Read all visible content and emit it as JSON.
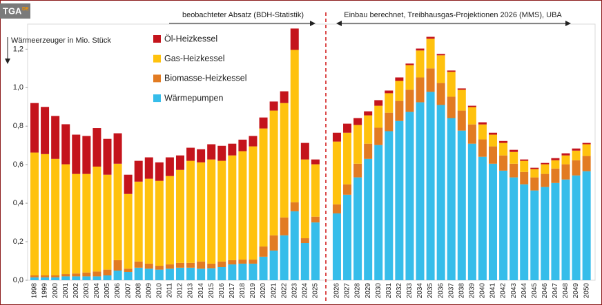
{
  "chart_data": {
    "type": "stacked-bar",
    "logo": {
      "text": "TGA",
      "suffix": "DE"
    },
    "y_label": "Wärmeerzeuger  in Mio. Stück",
    "annotations": [
      "beobachteter  Absatz (BDH-Statistik)",
      "Einbau berechnet, Treibhausgas-Projektionen 2026 (MMS), UBA"
    ],
    "categories": [
      "1998",
      "1999",
      "2000",
      "2001",
      "2002",
      "2003",
      "2004",
      "2005",
      "2006",
      "2007",
      "2008",
      "2009",
      "2010",
      "2011",
      "2012",
      "2013",
      "2014",
      "2015",
      "2016",
      "2017",
      "2018",
      "2019",
      "2020",
      "2021",
      "2022",
      "2023",
      "2024",
      "2025",
      "2026",
      "2027",
      "2028",
      "2029",
      "2030",
      "2031",
      "2032",
      "2033",
      "2034",
      "2035",
      "2036",
      "2037",
      "2038",
      "2039",
      "2040",
      "2041",
      "2042",
      "2043",
      "2044",
      "2045",
      "2046",
      "2047",
      "2048",
      "2049",
      "2050"
    ],
    "series": [
      {
        "name": "Wärmepumpen",
        "color": "#36bdea",
        "values": [
          0.015,
          0.015,
          0.015,
          0.02,
          0.02,
          0.02,
          0.02,
          0.025,
          0.05,
          0.043,
          0.065,
          0.06,
          0.055,
          0.06,
          0.065,
          0.065,
          0.06,
          0.062,
          0.068,
          0.082,
          0.086,
          0.086,
          0.122,
          0.154,
          0.233,
          0.358,
          0.193,
          0.3,
          0.347,
          0.444,
          0.534,
          0.63,
          0.702,
          0.774,
          0.827,
          0.874,
          0.924,
          0.978,
          0.91,
          0.842,
          0.777,
          0.709,
          0.641,
          0.605,
          0.569,
          0.534,
          0.498,
          0.466,
          0.484,
          0.505,
          0.523,
          0.544,
          0.566
        ]
      },
      {
        "name": "Biomasse-Heizkessel",
        "color": "#e27b22",
        "values": [
          0.01,
          0.01,
          0.01,
          0.012,
          0.015,
          0.02,
          0.025,
          0.03,
          0.054,
          0.017,
          0.032,
          0.026,
          0.02,
          0.022,
          0.025,
          0.025,
          0.037,
          0.024,
          0.029,
          0.022,
          0.021,
          0.021,
          0.053,
          0.079,
          0.093,
          0.047,
          0.025,
          0.03,
          0.047,
          0.054,
          0.071,
          0.079,
          0.09,
          0.096,
          0.104,
          0.115,
          0.129,
          0.122,
          0.114,
          0.111,
          0.104,
          0.1,
          0.09,
          0.09,
          0.079,
          0.071,
          0.064,
          0.068,
          0.068,
          0.075,
          0.079,
          0.079,
          0.079
        ]
      },
      {
        "name": "Gas-Heizkessel",
        "color": "#ffc20e",
        "values": [
          0.638,
          0.63,
          0.605,
          0.57,
          0.517,
          0.512,
          0.545,
          0.493,
          0.501,
          0.388,
          0.415,
          0.441,
          0.441,
          0.459,
          0.483,
          0.53,
          0.515,
          0.541,
          0.523,
          0.544,
          0.563,
          0.588,
          0.613,
          0.648,
          0.594,
          0.791,
          0.409,
          0.272,
          0.326,
          0.268,
          0.201,
          0.147,
          0.114,
          0.101,
          0.104,
          0.128,
          0.14,
          0.154,
          0.144,
          0.129,
          0.108,
          0.09,
          0.078,
          0.061,
          0.065,
          0.061,
          0.058,
          0.043,
          0.05,
          0.043,
          0.046,
          0.05,
          0.061
        ]
      },
      {
        "name": "Öl-Heizkessel",
        "color": "#c4141c",
        "values": [
          0.257,
          0.245,
          0.223,
          0.208,
          0.204,
          0.197,
          0.2,
          0.186,
          0.158,
          0.1,
          0.108,
          0.111,
          0.096,
          0.097,
          0.075,
          0.068,
          0.068,
          0.079,
          0.078,
          0.061,
          0.06,
          0.054,
          0.057,
          0.047,
          0.061,
          0.111,
          0.086,
          0.025,
          0.046,
          0.047,
          0.036,
          0.021,
          0.029,
          0.014,
          0.018,
          0.008,
          0.01,
          0.01,
          0.007,
          0.007,
          0.007,
          0.007,
          0.011,
          0.01,
          0.01,
          0.011,
          0.007,
          0.007,
          0.007,
          0.011,
          0.011,
          0.011,
          0.007
        ]
      }
    ],
    "ylim": [
      0,
      1.33
    ],
    "yticks": [
      {
        "value": 0,
        "label": "0,0"
      },
      {
        "value": 0.2,
        "label": "0,2"
      },
      {
        "value": 0.4,
        "label": "0,4"
      },
      {
        "value": 0.6,
        "label": "0,6"
      },
      {
        "value": 0.8,
        "label": "0,8"
      },
      {
        "value": 1.0,
        "label": "1,0"
      },
      {
        "value": 1.2,
        "label": "1,2"
      }
    ],
    "grid": false
  }
}
